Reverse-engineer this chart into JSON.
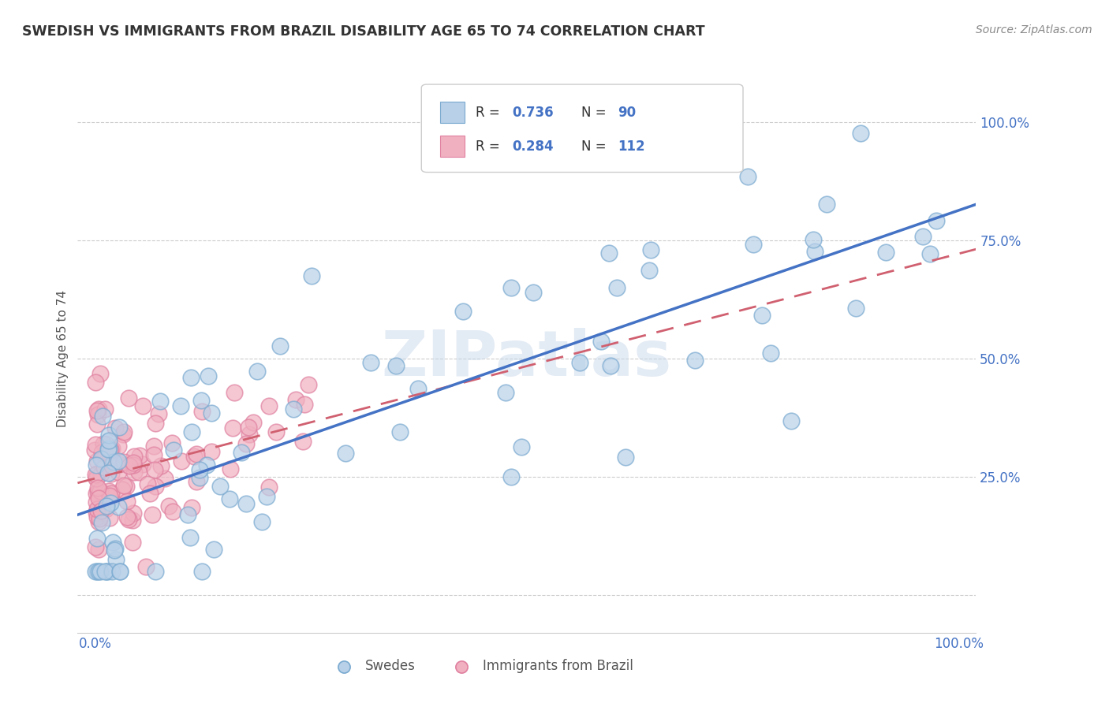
{
  "title": "SWEDISH VS IMMIGRANTS FROM BRAZIL DISABILITY AGE 65 TO 74 CORRELATION CHART",
  "source": "Source: ZipAtlas.com",
  "ylabel": "Disability Age 65 to 74",
  "legend_swedes": "Swedes",
  "legend_brazil": "Immigrants from Brazil",
  "R_swedes": 0.736,
  "N_swedes": 90,
  "R_brazil": 0.284,
  "N_brazil": 112,
  "color_swedes_fill": "#b8d0e8",
  "color_swedes_edge": "#7aaad0",
  "color_swedes_line": "#4472c4",
  "color_brazil_fill": "#f0b0c0",
  "color_brazil_edge": "#e080a0",
  "color_brazil_line": "#d06070",
  "color_grid": "#cccccc",
  "color_ytick": "#4472c4",
  "watermark": "ZIPatlas",
  "watermark_color": "#c8d8ea",
  "title_color": "#333333",
  "source_color": "#888888"
}
